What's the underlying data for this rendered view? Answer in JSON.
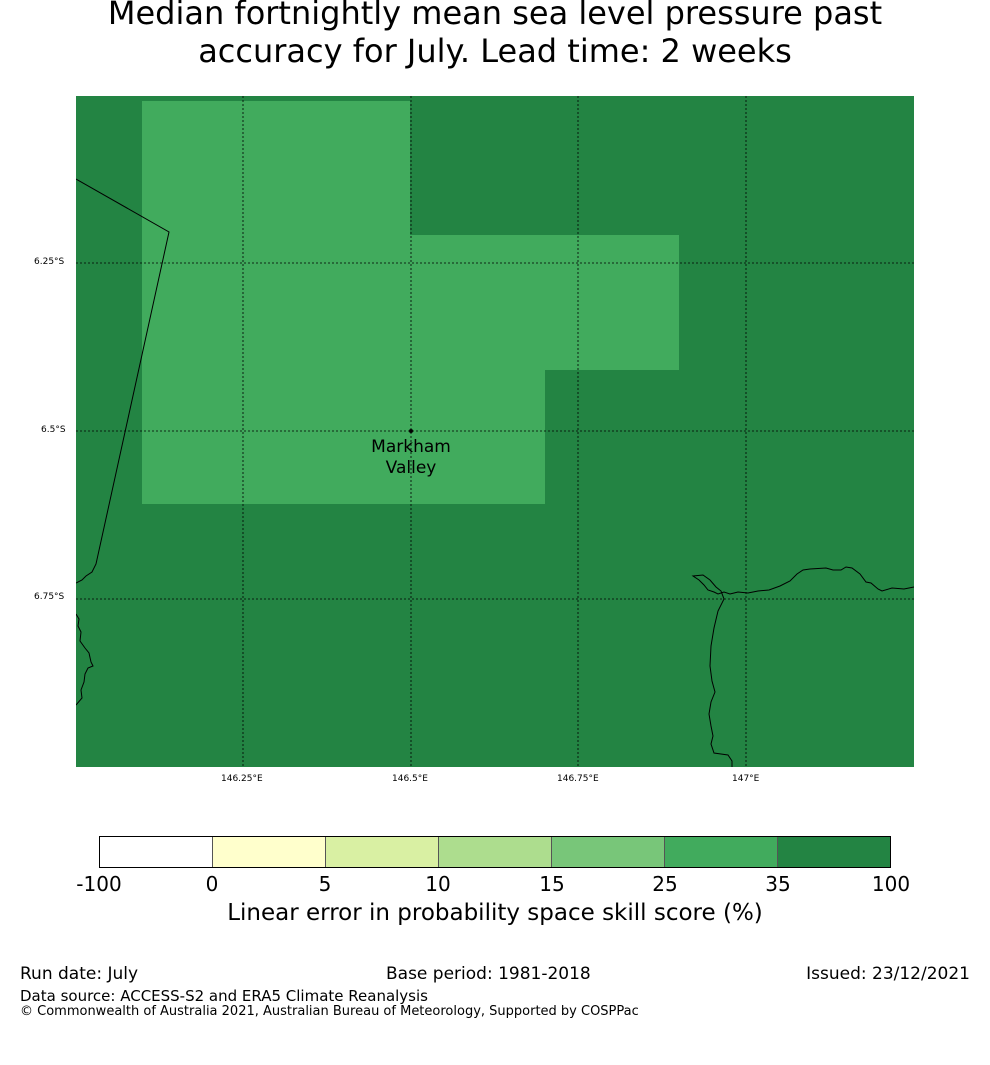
{
  "title_line1": "Median fortnightly mean sea level pressure past",
  "title_line2": "accuracy for July. Lead time: 2 weeks",
  "map": {
    "place_label_line1": "Markham",
    "place_label_line2": "Valley",
    "lon_labels": [
      "146.25°E",
      "146.5°E",
      "146.75°E",
      "147°E"
    ],
    "lat_labels": [
      "6.25°S",
      "6.5°S",
      "6.75°S"
    ],
    "colors": {
      "dark_green": "#238443",
      "mid_green": "#41ab5d",
      "coast": "#000000"
    }
  },
  "colorbar": {
    "ticks": [
      "-100",
      "0",
      "5",
      "10",
      "15",
      "25",
      "35",
      "100"
    ],
    "colors": [
      "#ffffff",
      "#ffffcc",
      "#d9f0a3",
      "#addd8e",
      "#78c679",
      "#41ab5d",
      "#238443"
    ],
    "label": "Linear error in probability space skill score (%)"
  },
  "footer": {
    "run_date": "Run date: July",
    "base_period": "Base period: 1981-2018",
    "issued": "Issued: 23/12/2021",
    "data_source": "Data source: ACCESS-S2 and ERA5 Climate Reanalysis",
    "copyright": "© Commonwealth of Australia 2021, Australian Bureau of Meteorology, Supported by COSPPac"
  }
}
